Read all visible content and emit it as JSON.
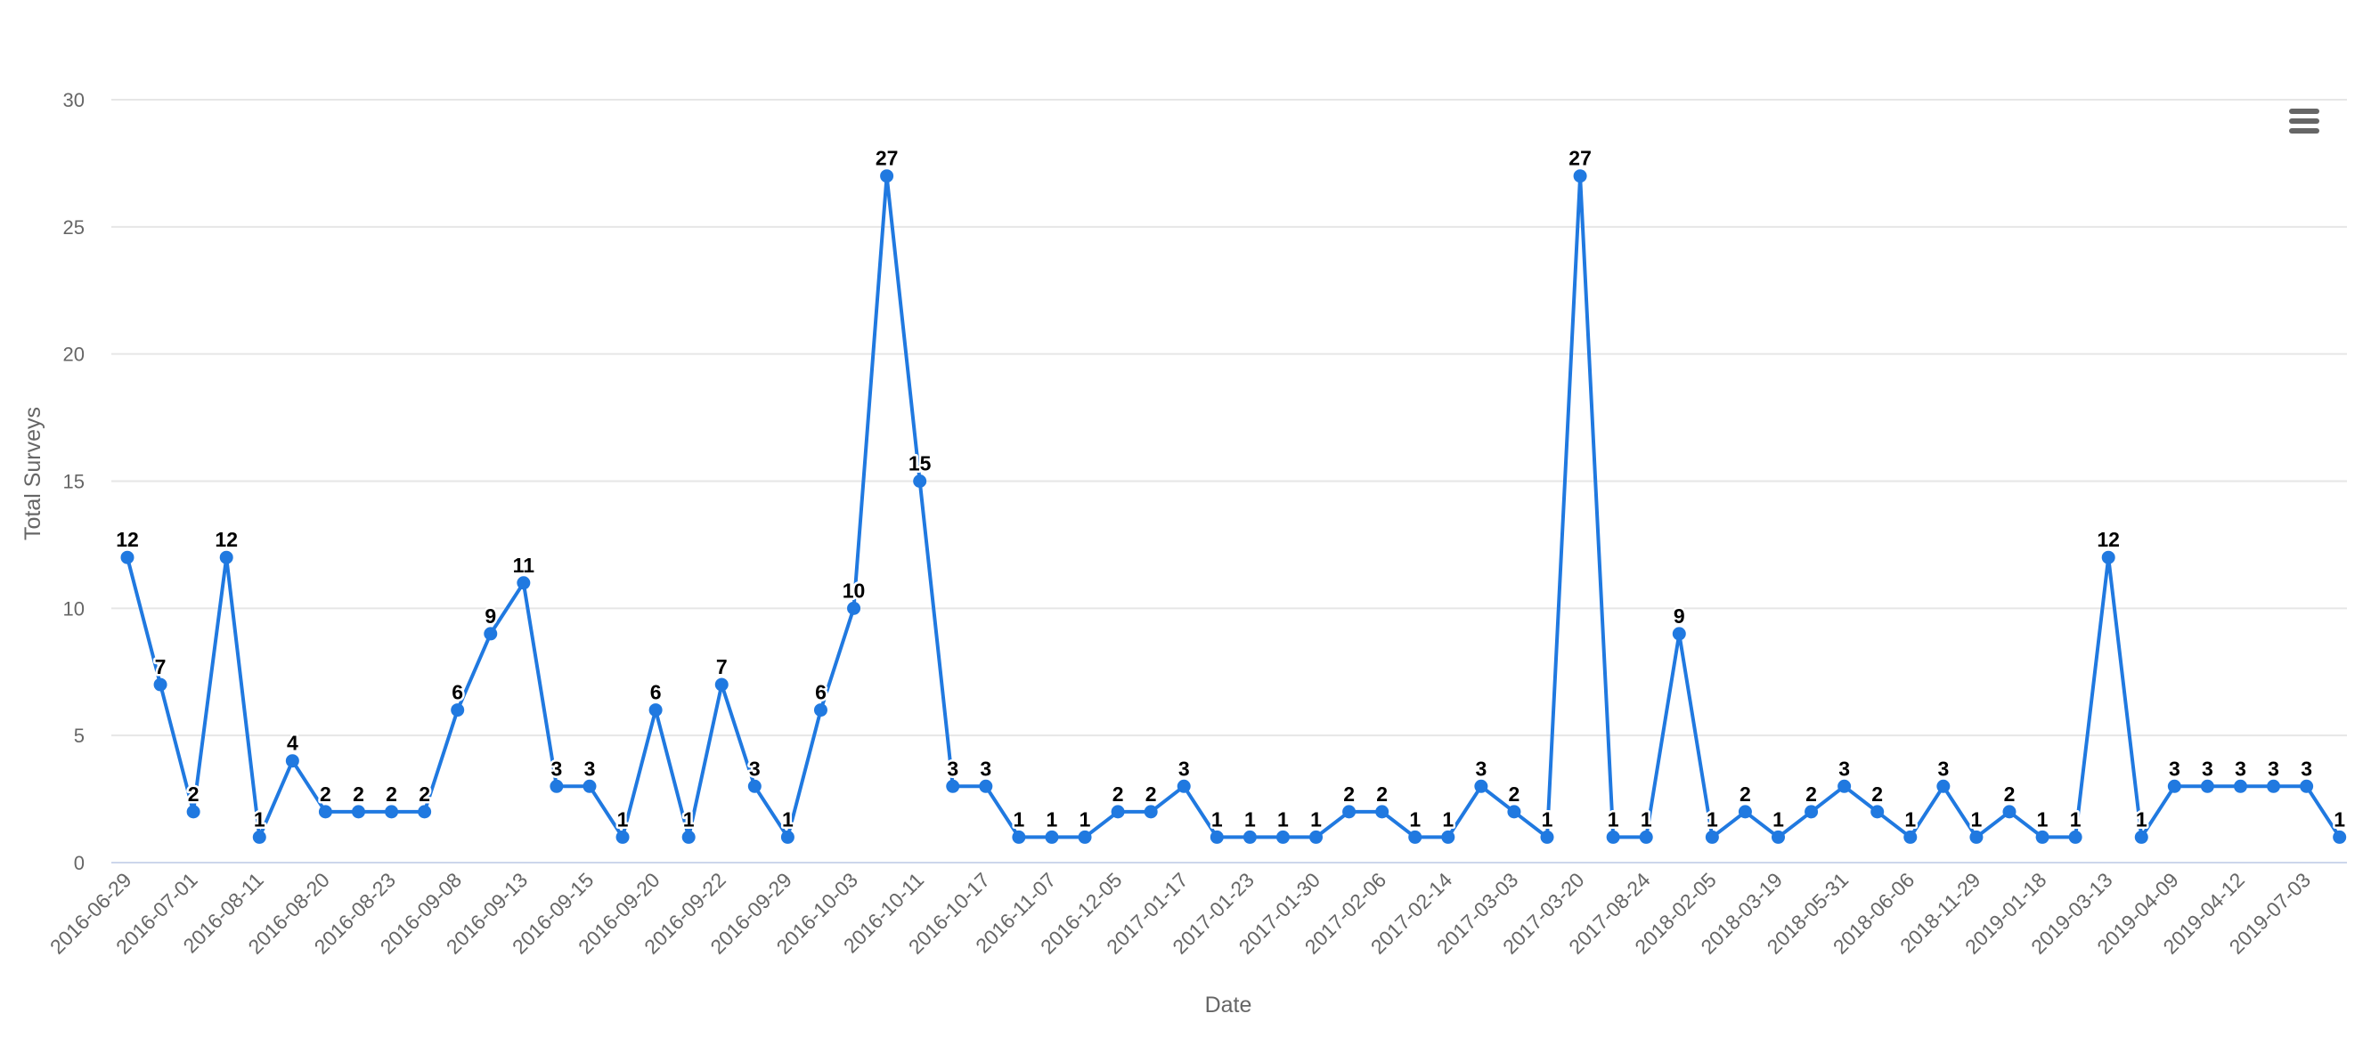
{
  "chart_data": {
    "type": "line",
    "title": "",
    "xlabel": "Date",
    "ylabel": "Total Surveys",
    "ylim": [
      0,
      30
    ],
    "yticks": [
      0,
      5,
      10,
      15,
      20,
      25,
      30
    ],
    "grid": true,
    "legend": "none",
    "x_tick_labels": [
      "2016-06-29",
      "2016-07-01",
      "2016-08-11",
      "2016-08-20",
      "2016-08-23",
      "2016-09-08",
      "2016-09-13",
      "2016-09-15",
      "2016-09-20",
      "2016-09-22",
      "2016-09-29",
      "2016-10-03",
      "2016-10-11",
      "2016-10-17",
      "2016-11-07",
      "2016-12-05",
      "2017-01-17",
      "2017-01-23",
      "2017-01-30",
      "2017-02-06",
      "2017-02-14",
      "2017-03-03",
      "2017-03-20",
      "2017-08-24",
      "2018-02-05",
      "2018-03-19",
      "2018-05-31",
      "2018-06-06",
      "2018-11-29",
      "2019-01-18",
      "2019-03-13",
      "2019-04-09",
      "2019-04-12",
      "2019-07-03"
    ],
    "series": [
      {
        "values": [
          12,
          7,
          2,
          12,
          1,
          4,
          2,
          2,
          2,
          2,
          6,
          9,
          11,
          3,
          3,
          1,
          6,
          1,
          7,
          3,
          1,
          6,
          10,
          27,
          15,
          3,
          3,
          1,
          1,
          1,
          2,
          2,
          3,
          1,
          1,
          1,
          1,
          2,
          2,
          1,
          1,
          3,
          2,
          1,
          27,
          1,
          1,
          9,
          1,
          2,
          1,
          2,
          3,
          2,
          1,
          3,
          1,
          2,
          1,
          1,
          12,
          1,
          3,
          3,
          3,
          3,
          3,
          1
        ]
      }
    ]
  },
  "colors": {
    "line": "#2079e0",
    "grid": "#e6e6e6",
    "axis": "#ccd6eb",
    "text": "#666666"
  },
  "menu": {
    "icon": "hamburger-menu-icon"
  }
}
